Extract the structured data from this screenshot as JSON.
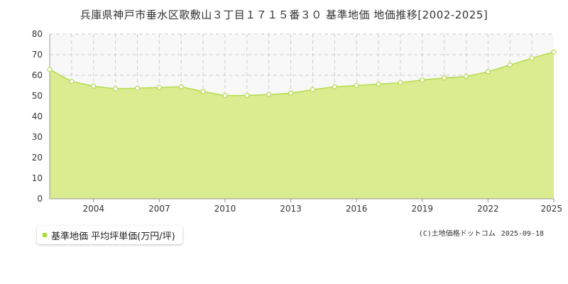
{
  "chart": {
    "title": "兵庫県神戸市垂水区歌敷山３丁目１７１５番３０ 基準地価 地価推移[2002-2025]"
  },
  "legend": {
    "label": "基準地価 平均坪単価(万円/坪)"
  },
  "credit": {
    "source": "(C)土地価格ドットコム",
    "date": "2025-09-18"
  },
  "colors": {
    "area_fill": "#d9ec8f",
    "line": "#b5da4e",
    "plot_bg": "#f8f8f8",
    "grid": "#cccccc",
    "marker_fill": "#ffffff",
    "legend_swatch": "#aadd33"
  },
  "chart_data": {
    "type": "area",
    "title": "兵庫県神戸市垂水区歌敷山３丁目１７１５番３０ 基準地価 地価推移[2002-2025]",
    "xlabel": "",
    "ylabel": "",
    "xlim": [
      2002,
      2025
    ],
    "ylim": [
      0,
      80
    ],
    "yticks": [
      0,
      10,
      20,
      30,
      40,
      50,
      60,
      70,
      80
    ],
    "xticks": [
      2004,
      2007,
      2010,
      2013,
      2016,
      2019,
      2022,
      2025
    ],
    "grid": true,
    "legend_position": "bottom-left",
    "series": [
      {
        "name": "基準地価 平均坪単価(万円/坪)",
        "x": [
          2002,
          2003,
          2004,
          2005,
          2006,
          2007,
          2008,
          2009,
          2010,
          2011,
          2012,
          2013,
          2014,
          2015,
          2016,
          2017,
          2018,
          2019,
          2020,
          2021,
          2022,
          2023,
          2024,
          2025
        ],
        "values": [
          62.8,
          57.0,
          54.7,
          53.4,
          53.7,
          54.1,
          54.4,
          52.1,
          50.1,
          50.2,
          50.6,
          51.3,
          53.0,
          54.4,
          55.0,
          55.7,
          56.4,
          57.7,
          58.7,
          59.4,
          61.7,
          65.0,
          68.3,
          71.3
        ]
      }
    ]
  }
}
